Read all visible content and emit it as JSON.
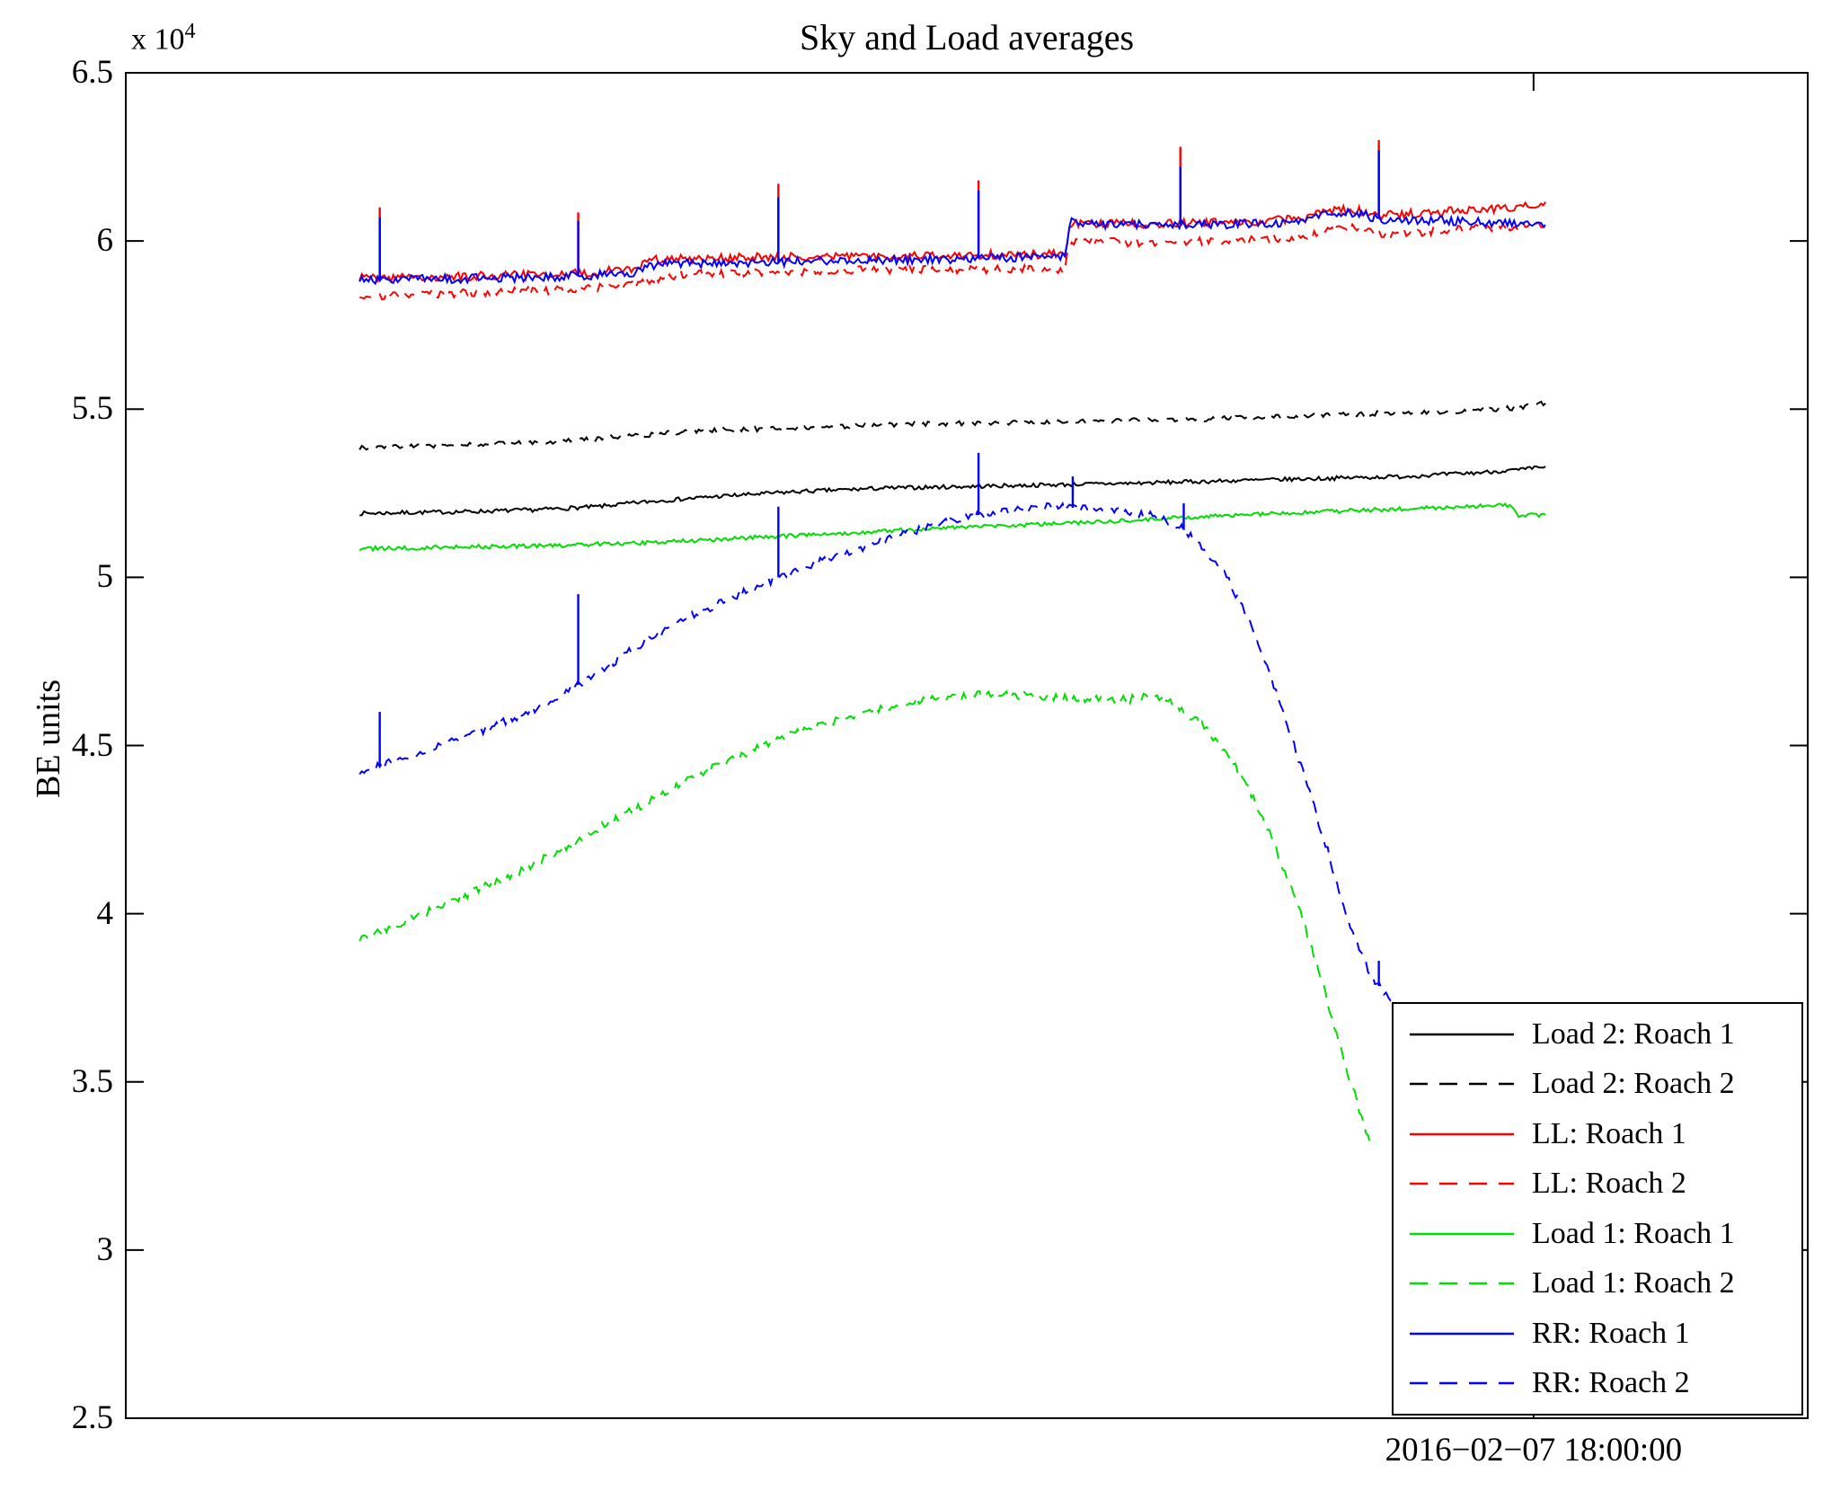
{
  "figure": {
    "title": "Sky and Load averages",
    "ylabel": "BE units",
    "y_scale_prefix": "x 10",
    "y_scale_exp": "4"
  },
  "chart_data": {
    "type": "line",
    "title": "Sky and Load averages",
    "xlabel": "",
    "ylabel": "BE units",
    "y_unit_multiplier": 10000,
    "ylim": [
      2.5,
      6.5
    ],
    "ytick_values": [
      2.5,
      3,
      3.5,
      4,
      4.5,
      5,
      5.5,
      6,
      6.5
    ],
    "ytick_labels": [
      "2.5",
      "3",
      "3.5",
      "4",
      "4.5",
      "5",
      "5.5",
      "6",
      "6.5"
    ],
    "xlim": [
      0,
      1
    ],
    "x_tick": {
      "pos": 0.837,
      "label": "2016−02−07 18:00:00"
    },
    "grid": false,
    "legend_position": "lower right",
    "draw_order": [
      3,
      2,
      6,
      1,
      0,
      4,
      5,
      7
    ],
    "series": [
      {
        "label": "Load 2: Roach 1",
        "color": "#000000",
        "style": "solid",
        "noise": 0.006,
        "points": [
          [
            0.139,
            5.19
          ],
          [
            0.2,
            5.195
          ],
          [
            0.24,
            5.2
          ],
          [
            0.28,
            5.21
          ],
          [
            0.31,
            5.225
          ],
          [
            0.35,
            5.24
          ],
          [
            0.4,
            5.255
          ],
          [
            0.45,
            5.265
          ],
          [
            0.5,
            5.27
          ],
          [
            0.55,
            5.275
          ],
          [
            0.6,
            5.28
          ],
          [
            0.64,
            5.285
          ],
          [
            0.68,
            5.29
          ],
          [
            0.72,
            5.295
          ],
          [
            0.76,
            5.3
          ],
          [
            0.8,
            5.31
          ],
          [
            0.83,
            5.32
          ],
          [
            0.845,
            5.33
          ]
        ],
        "spikes": []
      },
      {
        "label": "Load 2: Roach 2",
        "color": "#000000",
        "style": "dashed",
        "noise": 0.007,
        "points": [
          [
            0.139,
            5.385
          ],
          [
            0.2,
            5.395
          ],
          [
            0.26,
            5.405
          ],
          [
            0.3,
            5.42
          ],
          [
            0.34,
            5.435
          ],
          [
            0.4,
            5.445
          ],
          [
            0.46,
            5.455
          ],
          [
            0.52,
            5.46
          ],
          [
            0.58,
            5.465
          ],
          [
            0.64,
            5.47
          ],
          [
            0.7,
            5.48
          ],
          [
            0.76,
            5.49
          ],
          [
            0.8,
            5.495
          ],
          [
            0.83,
            5.505
          ],
          [
            0.845,
            5.52
          ]
        ],
        "spikes": []
      },
      {
        "label": "LL: Roach 1",
        "color": "#ff0000",
        "style": "solid",
        "noise": 0.013,
        "points": [
          [
            0.139,
            5.89
          ],
          [
            0.2,
            5.895
          ],
          [
            0.26,
            5.9
          ],
          [
            0.3,
            5.915
          ],
          [
            0.315,
            5.945
          ],
          [
            0.36,
            5.95
          ],
          [
            0.42,
            5.955
          ],
          [
            0.48,
            5.955
          ],
          [
            0.52,
            5.96
          ],
          [
            0.558,
            5.96
          ],
          [
            0.562,
            6.055
          ],
          [
            0.6,
            6.05
          ],
          [
            0.65,
            6.055
          ],
          [
            0.7,
            6.065
          ],
          [
            0.715,
            6.09
          ],
          [
            0.73,
            6.095
          ],
          [
            0.745,
            6.075
          ],
          [
            0.78,
            6.085
          ],
          [
            0.81,
            6.095
          ],
          [
            0.845,
            6.105
          ]
        ],
        "spikes": [
          [
            0.151,
            6.1
          ],
          [
            0.269,
            6.085
          ],
          [
            0.388,
            6.17
          ],
          [
            0.507,
            6.18
          ],
          [
            0.627,
            6.28
          ],
          [
            0.745,
            6.3
          ]
        ]
      },
      {
        "label": "LL: Roach 2",
        "color": "#ff0000",
        "style": "dashed",
        "noise": 0.012,
        "points": [
          [
            0.139,
            5.835
          ],
          [
            0.2,
            5.845
          ],
          [
            0.26,
            5.855
          ],
          [
            0.3,
            5.87
          ],
          [
            0.33,
            5.9
          ],
          [
            0.38,
            5.905
          ],
          [
            0.44,
            5.915
          ],
          [
            0.5,
            5.915
          ],
          [
            0.558,
            5.915
          ],
          [
            0.562,
            6.0
          ],
          [
            0.6,
            5.995
          ],
          [
            0.65,
            6.0
          ],
          [
            0.7,
            6.01
          ],
          [
            0.715,
            6.03
          ],
          [
            0.73,
            6.04
          ],
          [
            0.75,
            6.02
          ],
          [
            0.78,
            6.03
          ],
          [
            0.81,
            6.04
          ],
          [
            0.845,
            6.045
          ]
        ],
        "spikes": []
      },
      {
        "label": "Load 1: Roach 1",
        "color": "#00dd00",
        "style": "solid",
        "noise": 0.006,
        "points": [
          [
            0.139,
            5.085
          ],
          [
            0.2,
            5.09
          ],
          [
            0.26,
            5.095
          ],
          [
            0.32,
            5.105
          ],
          [
            0.38,
            5.12
          ],
          [
            0.44,
            5.135
          ],
          [
            0.5,
            5.15
          ],
          [
            0.56,
            5.16
          ],
          [
            0.62,
            5.175
          ],
          [
            0.68,
            5.19
          ],
          [
            0.74,
            5.2
          ],
          [
            0.8,
            5.21
          ],
          [
            0.823,
            5.215
          ],
          [
            0.827,
            5.185
          ],
          [
            0.845,
            5.185
          ]
        ],
        "spikes": []
      },
      {
        "label": "Load 1: Roach 2",
        "color": "#00dd00",
        "style": "dashed",
        "noise": 0.012,
        "points": [
          [
            0.139,
            3.92
          ],
          [
            0.17,
            3.985
          ],
          [
            0.2,
            4.05
          ],
          [
            0.24,
            4.14
          ],
          [
            0.28,
            4.25
          ],
          [
            0.32,
            4.36
          ],
          [
            0.36,
            4.46
          ],
          [
            0.4,
            4.54
          ],
          [
            0.44,
            4.6
          ],
          [
            0.47,
            4.635
          ],
          [
            0.5,
            4.65
          ],
          [
            0.53,
            4.65
          ],
          [
            0.56,
            4.64
          ],
          [
            0.59,
            4.635
          ],
          [
            0.61,
            4.645
          ],
          [
            0.625,
            4.62
          ],
          [
            0.64,
            4.56
          ],
          [
            0.655,
            4.48
          ],
          [
            0.67,
            4.35
          ],
          [
            0.685,
            4.18
          ],
          [
            0.7,
            3.98
          ],
          [
            0.712,
            3.78
          ],
          [
            0.722,
            3.6
          ],
          [
            0.732,
            3.44
          ],
          [
            0.739,
            3.33
          ],
          [
            0.742,
            3.3
          ]
        ],
        "spikes": []
      },
      {
        "label": "RR: Roach 1",
        "color": "#0000ff",
        "style": "solid",
        "noise": 0.013,
        "points": [
          [
            0.139,
            5.885
          ],
          [
            0.2,
            5.888
          ],
          [
            0.26,
            5.893
          ],
          [
            0.3,
            5.905
          ],
          [
            0.315,
            5.93
          ],
          [
            0.36,
            5.935
          ],
          [
            0.42,
            5.94
          ],
          [
            0.48,
            5.945
          ],
          [
            0.52,
            5.95
          ],
          [
            0.558,
            5.955
          ],
          [
            0.562,
            6.06
          ],
          [
            0.58,
            6.05
          ],
          [
            0.6,
            6.048
          ],
          [
            0.65,
            6.05
          ],
          [
            0.7,
            6.055
          ],
          [
            0.715,
            6.08
          ],
          [
            0.73,
            6.085
          ],
          [
            0.745,
            6.065
          ],
          [
            0.78,
            6.06
          ],
          [
            0.81,
            6.055
          ],
          [
            0.845,
            6.045
          ]
        ],
        "spikes": [
          [
            0.151,
            6.07
          ],
          [
            0.269,
            6.06
          ],
          [
            0.388,
            6.13
          ],
          [
            0.507,
            6.15
          ],
          [
            0.627,
            6.22
          ],
          [
            0.745,
            6.27
          ]
        ]
      },
      {
        "label": "RR: Roach 2",
        "color": "#0000ff",
        "style": "dashed",
        "noise": 0.012,
        "points": [
          [
            0.139,
            4.42
          ],
          [
            0.17,
            4.47
          ],
          [
            0.2,
            4.52
          ],
          [
            0.24,
            4.6
          ],
          [
            0.269,
            4.68
          ],
          [
            0.3,
            4.78
          ],
          [
            0.33,
            4.87
          ],
          [
            0.36,
            4.94
          ],
          [
            0.388,
            5.0
          ],
          [
            0.42,
            5.06
          ],
          [
            0.45,
            5.11
          ],
          [
            0.48,
            5.155
          ],
          [
            0.507,
            5.185
          ],
          [
            0.53,
            5.2
          ],
          [
            0.55,
            5.21
          ],
          [
            0.57,
            5.205
          ],
          [
            0.59,
            5.195
          ],
          [
            0.61,
            5.185
          ],
          [
            0.627,
            5.15
          ],
          [
            0.64,
            5.09
          ],
          [
            0.655,
            5.0
          ],
          [
            0.67,
            4.85
          ],
          [
            0.685,
            4.64
          ],
          [
            0.7,
            4.42
          ],
          [
            0.715,
            4.18
          ],
          [
            0.728,
            3.96
          ],
          [
            0.74,
            3.82
          ],
          [
            0.75,
            3.75
          ],
          [
            0.757,
            3.735
          ]
        ],
        "spikes": [
          [
            0.151,
            4.6
          ],
          [
            0.269,
            4.95
          ],
          [
            0.388,
            5.21
          ],
          [
            0.507,
            5.37
          ],
          [
            0.563,
            5.3
          ],
          [
            0.629,
            5.22
          ],
          [
            0.745,
            3.86
          ]
        ]
      }
    ]
  }
}
